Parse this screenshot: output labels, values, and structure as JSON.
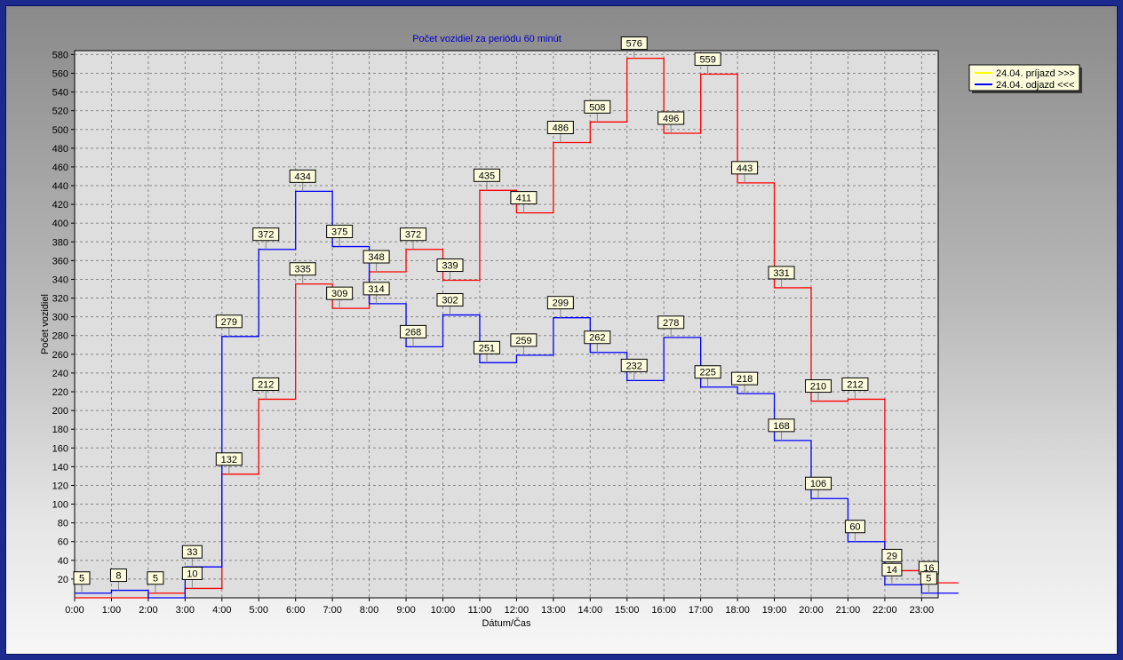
{
  "chart_data": {
    "type": "line",
    "title": "Počet vozidiel za periódu 60 minút",
    "xlabel": "Dátum/Čas",
    "ylabel": "Počet vozidiel",
    "categories": [
      "0:00",
      "1:00",
      "2:00",
      "3:00",
      "4:00",
      "5:00",
      "6:00",
      "7:00",
      "8:00",
      "9:00",
      "10:00",
      "11:00",
      "12:00",
      "13:00",
      "14:00",
      "15:00",
      "16:00",
      "17:00",
      "18:00",
      "19:00",
      "20:00",
      "21:00",
      "22:00",
      "23:00"
    ],
    "yticks": [
      20,
      40,
      60,
      80,
      100,
      120,
      140,
      160,
      180,
      200,
      220,
      240,
      260,
      280,
      300,
      320,
      340,
      360,
      380,
      400,
      420,
      440,
      460,
      480,
      500,
      520,
      540,
      560,
      580
    ],
    "ylim": [
      0,
      590
    ],
    "grid": true,
    "legend_position": "top-right",
    "series": [
      {
        "name": "24.04.  príjazd >>>",
        "legend_swatch": "#ffff00",
        "color": "#ff0000",
        "values": [
          0,
          0,
          5,
          10,
          132,
          212,
          335,
          309,
          348,
          372,
          339,
          435,
          411,
          486,
          508,
          576,
          496,
          559,
          443,
          331,
          210,
          212,
          29,
          16
        ]
      },
      {
        "name": "24.04.  odjazd <<<",
        "legend_swatch": "#0000ff",
        "color": "#0000ff",
        "values": [
          5,
          8,
          0,
          33,
          279,
          372,
          434,
          375,
          314,
          268,
          302,
          251,
          259,
          299,
          262,
          232,
          278,
          225,
          218,
          168,
          106,
          60,
          14,
          5
        ]
      }
    ],
    "labels": [
      {
        "series": 1,
        "index": 0,
        "text": "5"
      },
      {
        "series": 1,
        "index": 1,
        "text": "8"
      },
      {
        "series": 0,
        "index": 2,
        "text": "5"
      },
      {
        "series": 1,
        "index": 3,
        "text": "33"
      },
      {
        "series": 0,
        "index": 3,
        "text": "10"
      },
      {
        "series": 0,
        "index": 4,
        "text": "132"
      },
      {
        "series": 1,
        "index": 4,
        "text": "279"
      },
      {
        "series": 0,
        "index": 5,
        "text": "212"
      },
      {
        "series": 1,
        "index": 5,
        "text": "372"
      },
      {
        "series": 0,
        "index": 6,
        "text": "335"
      },
      {
        "series": 1,
        "index": 6,
        "text": "434"
      },
      {
        "series": 0,
        "index": 7,
        "text": "309"
      },
      {
        "series": 1,
        "index": 7,
        "text": "375"
      },
      {
        "series": 0,
        "index": 8,
        "text": "348"
      },
      {
        "series": 1,
        "index": 8,
        "text": "314"
      },
      {
        "series": 0,
        "index": 9,
        "text": "372"
      },
      {
        "series": 1,
        "index": 9,
        "text": "268"
      },
      {
        "series": 0,
        "index": 10,
        "text": "339"
      },
      {
        "series": 1,
        "index": 10,
        "text": "302"
      },
      {
        "series": 0,
        "index": 11,
        "text": "435"
      },
      {
        "series": 1,
        "index": 11,
        "text": "251"
      },
      {
        "series": 0,
        "index": 12,
        "text": "411"
      },
      {
        "series": 1,
        "index": 12,
        "text": "259"
      },
      {
        "series": 0,
        "index": 13,
        "text": "486"
      },
      {
        "series": 1,
        "index": 13,
        "text": "299"
      },
      {
        "series": 0,
        "index": 14,
        "text": "508"
      },
      {
        "series": 1,
        "index": 14,
        "text": "262"
      },
      {
        "series": 0,
        "index": 15,
        "text": "576"
      },
      {
        "series": 1,
        "index": 15,
        "text": "232"
      },
      {
        "series": 0,
        "index": 16,
        "text": "496"
      },
      {
        "series": 1,
        "index": 16,
        "text": "278"
      },
      {
        "series": 0,
        "index": 17,
        "text": "559"
      },
      {
        "series": 1,
        "index": 17,
        "text": "225"
      },
      {
        "series": 0,
        "index": 18,
        "text": "443"
      },
      {
        "series": 1,
        "index": 18,
        "text": "218"
      },
      {
        "series": 0,
        "index": 19,
        "text": "331"
      },
      {
        "series": 1,
        "index": 19,
        "text": "168"
      },
      {
        "series": 0,
        "index": 20,
        "text": "210"
      },
      {
        "series": 1,
        "index": 20,
        "text": "106"
      },
      {
        "series": 0,
        "index": 21,
        "text": "212"
      },
      {
        "series": 1,
        "index": 21,
        "text": "60"
      },
      {
        "series": 0,
        "index": 22,
        "text": "29"
      },
      {
        "series": 1,
        "index": 22,
        "text": "14"
      },
      {
        "series": 0,
        "index": 23,
        "text": "16"
      },
      {
        "series": 1,
        "index": 23,
        "text": "5"
      }
    ]
  }
}
